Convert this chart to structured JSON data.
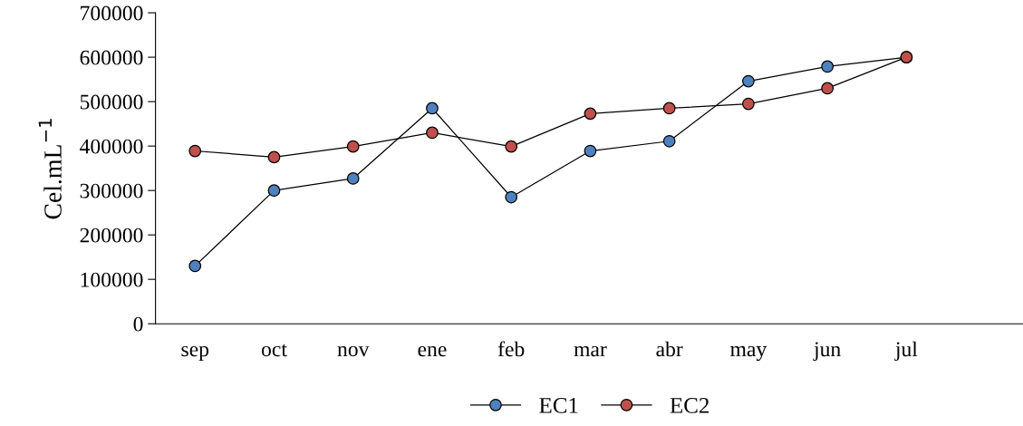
{
  "chart_data": {
    "type": "line",
    "ylabel": "Cel.mL$^{−1}$",
    "categories": [
      "sep",
      "oct",
      "nov",
      "ene",
      "feb",
      "mar",
      "abr",
      "may",
      "jun",
      "jul",
      null
    ],
    "series": [
      {
        "name": "EC1",
        "color": "#4f81bd",
        "values": [
          130000,
          300000,
          327000,
          485000,
          285000,
          389000,
          411000,
          546000,
          579000,
          600000,
          null
        ]
      },
      {
        "name": "EC2",
        "color": "#c0504d",
        "values": [
          389000,
          375000,
          399000,
          430000,
          399000,
          473000,
          485000,
          495000,
          530000,
          600000,
          null
        ]
      }
    ],
    "ylim": [
      0,
      700000
    ],
    "yticks": [
      0,
      100000,
      200000,
      300000,
      400000,
      500000,
      600000,
      700000
    ],
    "grid": false,
    "legend": "bottom",
    "marker": "circle",
    "line_style": "solid"
  }
}
